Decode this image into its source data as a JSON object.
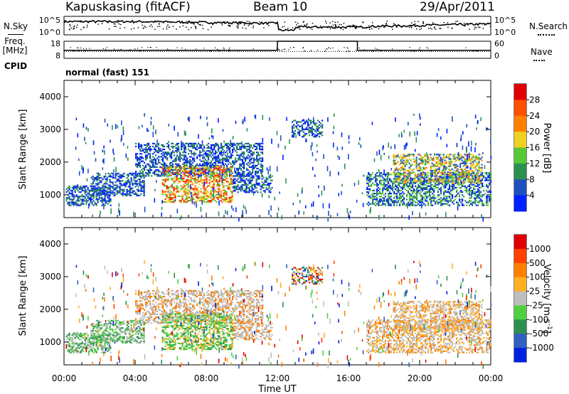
{
  "header": {
    "station": "Kapuskasing (fitACF)",
    "beam": "Beam 10",
    "date": "29/Apr/2011"
  },
  "strip_labels": {
    "nsky": "N.Sky",
    "nsearch": "N.Search",
    "freq": "Freq.",
    "freq_unit": "[MHz]",
    "nave": "Nave",
    "cpid": "CPID",
    "cpid_value": "normal (fast) 151"
  },
  "colors": {
    "frame": "#000000",
    "velocity_grey": "#bebebe"
  },
  "chart_data": [
    {
      "type": "line",
      "panel": "noise",
      "left_ticks": [
        "10^5",
        "10^0"
      ],
      "right_ticks": [
        "10^5",
        "10^0"
      ],
      "description_series": [
        "N.Sky (solid)",
        "N.Search (dotted)"
      ]
    },
    {
      "type": "line",
      "panel": "frequency",
      "left_ticks": [
        "18",
        "8"
      ],
      "right_ticks": [
        "60",
        "0"
      ],
      "series": [
        {
          "name": "Freq.",
          "style": "dotted",
          "x_hours": [
            0,
            24
          ],
          "values": [
            12,
            12
          ]
        },
        {
          "name": "Nave",
          "style": "solid",
          "x_hours": [
            0,
            12,
            12,
            16.5,
            16.5,
            24
          ],
          "values": [
            28,
            28,
            60,
            60,
            28,
            28
          ]
        }
      ],
      "ylim_left": [
        8,
        18
      ],
      "ylim_right": [
        0,
        60
      ]
    },
    {
      "type": "heatmap",
      "panel": "power",
      "ylabel": "Slant Range [km]",
      "xlabel": "",
      "yticks": [
        "1000",
        "2000",
        "3000",
        "4000"
      ],
      "ylim": [
        300,
        4500
      ],
      "xlim_hours": [
        0,
        24
      ],
      "colorbar": {
        "label": "Power [dB]",
        "ticks": [
          "4",
          "8",
          "12",
          "16",
          "20",
          "24",
          "28"
        ],
        "range": [
          0,
          32
        ],
        "colors": [
          "#0020ff",
          "#2050c0",
          "#2e9050",
          "#58c838",
          "#f0d020",
          "#ff8000",
          "#ff5000",
          "#e00000"
        ]
      }
    },
    {
      "type": "heatmap",
      "panel": "velocity",
      "ylabel": "Slant Range [km]",
      "xlabel": "Time UT",
      "yticks": [
        "1000",
        "2000",
        "3000",
        "4000"
      ],
      "xticks": [
        "00:00",
        "04:00",
        "08:00",
        "12:00",
        "16:00",
        "20:00",
        "00:00"
      ],
      "ylim": [
        300,
        4500
      ],
      "xlim_hours": [
        0,
        24
      ],
      "colorbar": {
        "label": "Velocity [m s",
        "label_exp": "-1",
        "label_close": "]",
        "ticks": [
          "1000",
          "500",
          "100",
          "25",
          "-25",
          "-100",
          "-500",
          "-1000"
        ],
        "colors": [
          "#0020e0",
          "#3060c0",
          "#2e9050",
          "#50d040",
          "#bebebe",
          "#ffb020",
          "#ff8000",
          "#ff4000",
          "#e00000"
        ]
      }
    }
  ]
}
